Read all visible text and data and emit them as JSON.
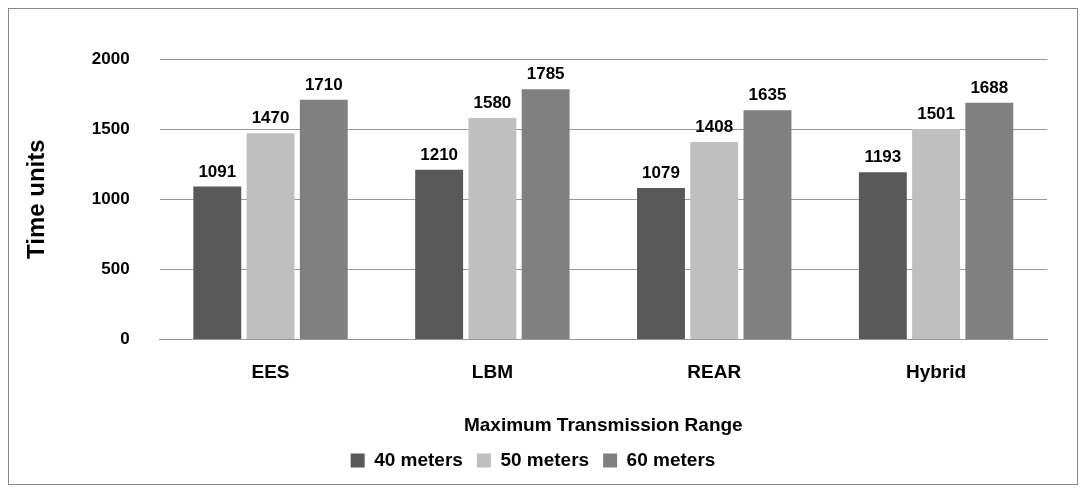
{
  "chart_data": {
    "type": "bar",
    "xlabel": "Maximum Transmission Range",
    "ylabel": "Time units",
    "categories": [
      "EES",
      "LBM",
      "REAR",
      "Hybrid"
    ],
    "series": [
      {
        "name": "40 meters",
        "color": "#595959",
        "values": [
          1091,
          1210,
          1079,
          1193
        ]
      },
      {
        "name": "50 meters",
        "color": "#bfbfbf",
        "values": [
          1470,
          1580,
          1408,
          1501
        ]
      },
      {
        "name": "60 meters",
        "color": "#808080",
        "values": [
          1710,
          1785,
          1635,
          1688
        ]
      }
    ],
    "ylim": [
      0,
      2000
    ],
    "yticks": [
      0,
      500,
      1000,
      1500,
      2000
    ],
    "grid": "y",
    "legend": "bottom",
    "data_labels": true
  }
}
